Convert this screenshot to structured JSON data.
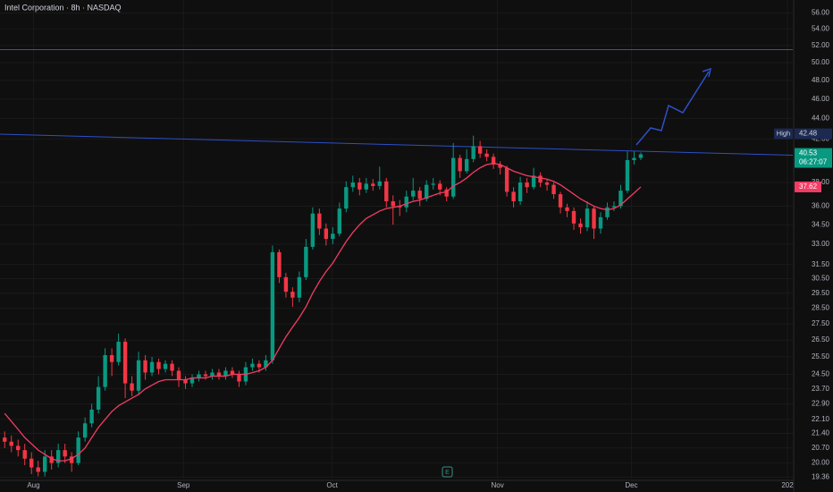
{
  "chart_data": {
    "type": "candlestick",
    "title": "Intel Corporation · 8h · NASDAQ",
    "log_scale": true,
    "grid": true,
    "up_color": "#089981",
    "down_color": "#f23645",
    "xlim": [
      -0.7,
      117.7
    ],
    "xticks": [
      {
        "value": 4.3,
        "label": "Aug"
      },
      {
        "value": 26.7,
        "label": "Sep"
      },
      {
        "value": 48.9,
        "label": "Oct"
      },
      {
        "value": 73.6,
        "label": "Nov"
      },
      {
        "value": 93.6,
        "label": "Dec"
      },
      {
        "value": 116.9,
        "label": "202"
      }
    ],
    "ylim": [
      19.3,
      57.7
    ],
    "yticks": [
      {
        "value": 56,
        "label": "56.00"
      },
      {
        "value": 54,
        "label": "54.00"
      },
      {
        "value": 52,
        "label": "52.00"
      },
      {
        "value": 50,
        "label": "50.00"
      },
      {
        "value": 48,
        "label": "48.00"
      },
      {
        "value": 46,
        "label": "46.00"
      },
      {
        "value": 44,
        "label": "44.00"
      },
      {
        "value": 42,
        "label": "42.00"
      },
      {
        "value": 38,
        "label": "38.00"
      },
      {
        "value": 36,
        "label": "36.00"
      },
      {
        "value": 34.5,
        "label": "34.50"
      },
      {
        "value": 33,
        "label": "33.00"
      },
      {
        "value": 31.5,
        "label": "31.50"
      },
      {
        "value": 30.5,
        "label": "30.50"
      },
      {
        "value": 29.5,
        "label": "29.50"
      },
      {
        "value": 28.5,
        "label": "28.50"
      },
      {
        "value": 27.5,
        "label": "27.50"
      },
      {
        "value": 26.5,
        "label": "26.50"
      },
      {
        "value": 25.5,
        "label": "25.50"
      },
      {
        "value": 24.5,
        "label": "24.50"
      },
      {
        "value": 23.7,
        "label": "23.70"
      },
      {
        "value": 22.9,
        "label": "22.90"
      },
      {
        "value": 22.1,
        "label": "22.10"
      },
      {
        "value": 21.4,
        "label": "21.40"
      },
      {
        "value": 20.7,
        "label": "20.70"
      },
      {
        "value": 20,
        "label": "20.00"
      },
      {
        "value": 19.36,
        "label": "19.36"
      }
    ],
    "open": [
      21.2,
      21.0,
      20.8,
      20.6,
      20.2,
      19.8,
      19.6,
      20.3,
      20.0,
      20.6,
      20.3,
      20.0,
      21.2,
      21.9,
      22.6,
      23.8,
      25.6,
      25.2,
      26.4,
      24.0,
      23.6,
      25.3,
      24.6,
      25.2,
      24.8,
      25.1,
      24.7,
      24.2,
      24.0,
      24.3,
      24.5,
      24.4,
      24.6,
      24.4,
      24.7,
      24.5,
      24.1,
      24.9,
      25.1,
      24.9,
      25.3,
      32.4,
      30.6,
      29.6,
      29.2,
      30.6,
      32.8,
      35.4,
      34.2,
      33.4,
      33.8,
      35.8,
      37.6,
      38.0,
      37.4,
      37.9,
      37.7,
      38.1,
      36.4,
      36.0,
      35.9,
      36.8,
      37.3,
      36.6,
      37.8,
      37.9,
      37.4,
      36.8,
      40.2,
      39.0,
      40.1,
      41.3,
      40.6,
      40.3,
      39.6,
      39.3,
      37.2,
      36.4,
      38.0,
      37.6,
      38.6,
      38.0,
      37.8,
      37.0,
      35.9,
      35.6,
      34.6,
      34.3,
      35.8,
      34.2,
      35.1,
      35.9,
      36.0,
      37.3,
      40.0,
      40.2
    ],
    "high": [
      21.5,
      21.3,
      21.1,
      20.9,
      20.5,
      20.1,
      20.6,
      20.6,
      20.9,
      20.9,
      20.5,
      21.5,
      22.2,
      22.9,
      24.4,
      26.0,
      26.0,
      26.9,
      26.6,
      24.4,
      25.8,
      25.6,
      25.5,
      25.4,
      25.3,
      25.3,
      24.9,
      24.4,
      24.5,
      24.7,
      24.7,
      24.8,
      24.8,
      24.9,
      24.9,
      24.7,
      25.2,
      25.4,
      25.3,
      25.6,
      32.9,
      32.6,
      30.9,
      29.9,
      31.0,
      33.4,
      35.9,
      35.8,
      34.6,
      34.3,
      36.3,
      38.1,
      38.6,
      38.4,
      38.4,
      38.3,
      39.4,
      38.4,
      36.9,
      36.5,
      37.3,
      38.4,
      37.6,
      38.2,
      38.4,
      38.2,
      37.6,
      41.6,
      40.5,
      41.0,
      42.3,
      41.8,
      41.0,
      40.6,
      39.9,
      39.5,
      37.6,
      38.5,
      38.4,
      39.3,
      38.9,
      38.3,
      38.0,
      37.2,
      36.2,
      35.9,
      35.0,
      36.4,
      36.0,
      35.5,
      36.3,
      36.4,
      37.8,
      40.8,
      40.8,
      40.7
    ],
    "low": [
      20.7,
      20.5,
      20.3,
      19.9,
      19.5,
      19.4,
      19.4,
      19.7,
      19.8,
      20.0,
      19.6,
      19.9,
      21.0,
      21.7,
      22.4,
      23.6,
      24.4,
      25.0,
      23.2,
      23.3,
      23.4,
      24.2,
      24.4,
      24.5,
      24.6,
      24.4,
      23.8,
      23.7,
      23.8,
      24.1,
      24.2,
      24.2,
      24.2,
      24.2,
      24.3,
      23.8,
      23.9,
      24.7,
      24.6,
      24.7,
      25.1,
      30.2,
      29.2,
      28.6,
      28.9,
      30.4,
      32.6,
      33.7,
      32.9,
      33.0,
      33.6,
      35.5,
      37.2,
      36.9,
      37.1,
      37.3,
      37.4,
      35.9,
      34.5,
      35.2,
      35.5,
      36.5,
      36.0,
      36.4,
      37.4,
      36.9,
      36.4,
      36.6,
      38.4,
      38.8,
      39.8,
      40.2,
      39.9,
      39.2,
      38.7,
      36.8,
      35.9,
      36.1,
      37.1,
      37.4,
      37.6,
      37.3,
      36.6,
      35.4,
      35.1,
      34.1,
      33.8,
      34.0,
      33.4,
      33.8,
      34.9,
      35.6,
      35.8,
      37.1,
      39.6,
      40.0
    ],
    "close": [
      21.0,
      20.8,
      20.6,
      20.2,
      19.8,
      19.6,
      20.3,
      20.0,
      20.6,
      20.3,
      20.0,
      21.2,
      21.9,
      22.6,
      23.8,
      25.6,
      25.2,
      26.4,
      24.0,
      23.6,
      25.3,
      24.6,
      25.2,
      24.8,
      25.1,
      24.7,
      24.2,
      24.0,
      24.3,
      24.5,
      24.4,
      24.6,
      24.4,
      24.7,
      24.5,
      24.1,
      24.9,
      25.1,
      24.9,
      25.3,
      32.4,
      30.6,
      29.6,
      29.2,
      30.6,
      32.8,
      35.4,
      34.2,
      33.4,
      33.8,
      35.8,
      37.6,
      38.0,
      37.4,
      37.9,
      37.7,
      38.1,
      36.4,
      36.0,
      35.9,
      36.8,
      37.3,
      36.6,
      37.8,
      37.9,
      37.4,
      36.8,
      40.2,
      39.0,
      40.1,
      41.3,
      40.6,
      40.3,
      39.6,
      39.3,
      37.2,
      36.4,
      38.0,
      37.6,
      38.6,
      38.0,
      37.8,
      37.0,
      35.9,
      35.6,
      34.6,
      34.3,
      35.8,
      34.2,
      35.1,
      35.9,
      36.0,
      37.3,
      40.0,
      40.2,
      40.53
    ],
    "ma": {
      "color": "#f23c64",
      "values": [
        22.4,
        22.0,
        21.6,
        21.2,
        20.9,
        20.6,
        20.4,
        20.2,
        20.1,
        20.1,
        20.2,
        20.4,
        20.7,
        21.2,
        21.7,
        22.1,
        22.5,
        22.8,
        23.0,
        23.2,
        23.4,
        23.7,
        23.9,
        24.1,
        24.2,
        24.2,
        24.2,
        24.2,
        24.3,
        24.3,
        24.3,
        24.4,
        24.4,
        24.4,
        24.5,
        24.5,
        24.5,
        24.6,
        24.7,
        24.9,
        25.3,
        26.0,
        26.7,
        27.3,
        27.9,
        28.6,
        29.5,
        30.3,
        31.0,
        31.6,
        32.4,
        33.2,
        33.9,
        34.5,
        35.0,
        35.3,
        35.6,
        35.8,
        35.9,
        36.0,
        36.2,
        36.4,
        36.5,
        36.7,
        36.9,
        37.1,
        37.2,
        37.7,
        38.0,
        38.4,
        38.9,
        39.3,
        39.6,
        39.7,
        39.6,
        39.3,
        39.0,
        38.8,
        38.6,
        38.5,
        38.4,
        38.3,
        38.1,
        37.8,
        37.4,
        37.0,
        36.6,
        36.3,
        36.0,
        35.8,
        35.7,
        35.8,
        36.1,
        36.6,
        37.1,
        37.62
      ]
    },
    "level": {
      "value": 51.5,
      "color": "#2f4fc8"
    },
    "trendline": {
      "x": [
        -0.7,
        117.7
      ],
      "y": [
        42.45,
        40.45
      ],
      "color": "#2f4fc8"
    },
    "high_label": "High",
    "high_value": 42.48,
    "countdown": "06:27:07",
    "earnings_marker": "E"
  }
}
